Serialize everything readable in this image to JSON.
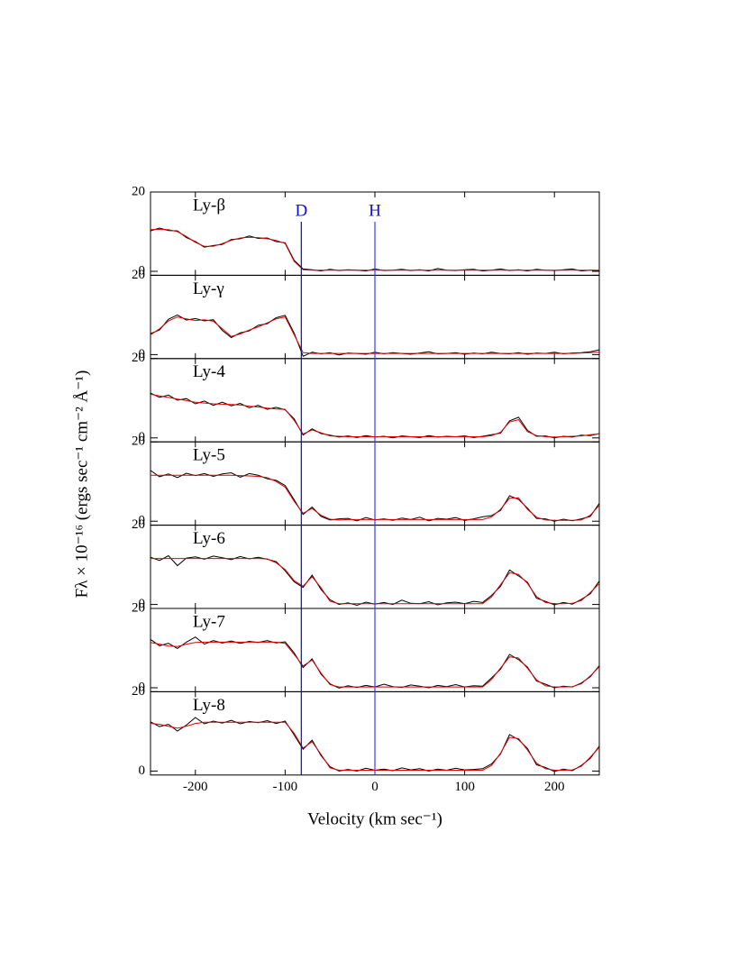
{
  "chart_data": {
    "type": "line",
    "xlabel": "Velocity (km sec⁻¹)",
    "ylabel": "Fλ × 10⁻¹⁶ (ergs sec⁻¹ cm⁻² Å⁻¹)",
    "xlim": [
      -250,
      250
    ],
    "xticks": [
      -200,
      -100,
      0,
      100,
      200
    ],
    "x": [
      -250,
      -240,
      -230,
      -220,
      -210,
      -200,
      -190,
      -180,
      -170,
      -160,
      -150,
      -140,
      -130,
      -120,
      -110,
      -100,
      -90,
      -80,
      -70,
      -60,
      -50,
      -40,
      -30,
      -20,
      -10,
      0,
      10,
      20,
      30,
      40,
      50,
      60,
      70,
      80,
      90,
      100,
      110,
      120,
      130,
      140,
      150,
      160,
      170,
      180,
      190,
      200,
      210,
      220,
      230,
      240,
      250
    ],
    "vlines": [
      {
        "label": "D",
        "x": -82,
        "color": "#1a1a5e"
      },
      {
        "label": "H",
        "x": 0,
        "color": "#3a3aff"
      }
    ],
    "panels": [
      {
        "label": "Ly-β",
        "ylim": [
          -1,
          20
        ],
        "yticks": [
          0,
          20
        ],
        "series": [
          {
            "color": "#000000",
            "values": [
              10.2,
              10.9,
              10.3,
              10.2,
              8.5,
              7.5,
              6.1,
              6.5,
              6.8,
              8,
              8.2,
              8.9,
              8.3,
              8.4,
              7.5,
              7.2,
              2.8,
              0.6,
              0.4,
              0.1,
              0.5,
              0.2,
              0.4,
              0.3,
              0.1,
              0.6,
              0.2,
              0.3,
              0.5,
              0.2,
              0.4,
              0.1,
              0.7,
              0.3,
              0.2,
              0.4,
              0.5,
              0.1,
              0.3,
              0.6,
              0.2,
              0.4,
              0.1,
              0.5,
              0.3,
              0.2,
              0.4,
              0.6,
              0.1,
              0.3,
              0.2
            ]
          },
          {
            "color": "#e00000",
            "values": [
              10.5,
              10.6,
              10.5,
              10,
              8.8,
              7.3,
              6.3,
              6.3,
              7,
              7.8,
              8.4,
              8.6,
              8.5,
              8.2,
              7.8,
              7,
              2.5,
              0.4,
              0.3,
              0.3,
              0.3,
              0.3,
              0.3,
              0.3,
              0.3,
              0.3,
              0.3,
              0.3,
              0.3,
              0.3,
              0.3,
              0.3,
              0.3,
              0.3,
              0.3,
              0.3,
              0.3,
              0.3,
              0.3,
              0.3,
              0.3,
              0.3,
              0.3,
              0.3,
              0.3,
              0.3,
              0.3,
              0.3,
              0.3,
              0.3,
              0.3
            ]
          }
        ]
      },
      {
        "label": "Ly-γ",
        "ylim": [
          -1,
          20
        ],
        "yticks": [
          0,
          20
        ],
        "series": [
          {
            "color": "#000000",
            "values": [
              5.3,
              6.2,
              8.9,
              10,
              8.7,
              9.1,
              8.5,
              8.8,
              6.1,
              4.3,
              5.5,
              6,
              7.4,
              7.8,
              9.3,
              9.9,
              5.4,
              -0.4,
              0.6,
              0.2,
              0.5,
              -0.1,
              0.4,
              0.3,
              0.1,
              0.6,
              0.2,
              0.5,
              0.3,
              0.1,
              0.4,
              0.7,
              0.2,
              0.3,
              0.5,
              0.1,
              0.4,
              0.2,
              0.6,
              0.3,
              0.2,
              0.5,
              0.1,
              0.4,
              0.3,
              0.6,
              0.2,
              0.4,
              0.5,
              0.7,
              1.2
            ]
          },
          {
            "color": "#e00000",
            "values": [
              5,
              6.5,
              8.5,
              9.5,
              9,
              8.6,
              8.8,
              8.4,
              6.5,
              4.6,
              5.2,
              6.2,
              7,
              8,
              9,
              9.5,
              5,
              0.5,
              0.3,
              0.3,
              0.3,
              0.3,
              0.3,
              0.3,
              0.3,
              0.3,
              0.3,
              0.3,
              0.3,
              0.3,
              0.3,
              0.3,
              0.3,
              0.3,
              0.3,
              0.3,
              0.3,
              0.3,
              0.3,
              0.3,
              0.3,
              0.3,
              0.3,
              0.3,
              0.3,
              0.3,
              0.3,
              0.3,
              0.4,
              0.5,
              0.6
            ]
          }
        ]
      },
      {
        "label": "Ly-4",
        "ylim": [
          -1,
          20
        ],
        "yticks": [
          0,
          20
        ],
        "series": [
          {
            "color": "#000000",
            "values": [
              11.3,
              10.2,
              10.8,
              9.5,
              9.9,
              8.6,
              9.3,
              8.2,
              9,
              8.1,
              8.7,
              7.6,
              8.2,
              7.2,
              7.7,
              7.1,
              4.8,
              0.7,
              2.3,
              1.1,
              0.7,
              0.2,
              0.5,
              0.1,
              0.6,
              0.2,
              0.4,
              0,
              0.5,
              0.3,
              0.1,
              0.6,
              0.2,
              0.4,
              0.3,
              0.5,
              0.1,
              0.4,
              0.8,
              1.2,
              4.3,
              5.2,
              1.9,
              0.4,
              0.5,
              0,
              0.4,
              0.2,
              0.7,
              0.6,
              1.1
            ]
          },
          {
            "color": "#e00000",
            "values": [
              11,
              10.6,
              10.2,
              9.8,
              9.4,
              9,
              8.8,
              8.6,
              8.5,
              8.4,
              8.3,
              8,
              7.8,
              7.5,
              7.3,
              7.2,
              4.4,
              1,
              2,
              1.3,
              0.5,
              0.4,
              0.3,
              0.3,
              0.3,
              0.3,
              0.3,
              0.3,
              0.3,
              0.3,
              0.3,
              0.3,
              0.3,
              0.3,
              0.3,
              0.3,
              0.3,
              0.3,
              0.6,
              1.4,
              4,
              4.6,
              1.6,
              0.6,
              0.3,
              0.2,
              0.3,
              0.4,
              0.5,
              0.8,
              1
            ]
          }
        ]
      },
      {
        "label": "Ly-5",
        "ylim": [
          -1,
          20
        ],
        "yticks": [
          0,
          20
        ],
        "series": [
          {
            "color": "#000000",
            "values": [
              12.8,
              11.2,
              11.9,
              11,
              12.1,
              11.5,
              12,
              11.3,
              11.9,
              12.2,
              11.1,
              12,
              11.6,
              10.7,
              10.3,
              9,
              5.4,
              1.7,
              3.6,
              1.2,
              0.3,
              0.6,
              0.7,
              0.1,
              0.9,
              0.3,
              0.6,
              0.2,
              0.8,
              0.4,
              1,
              0.1,
              0.7,
              0.5,
              0.9,
              0.2,
              0.6,
              1.1,
              1.4,
              2.7,
              6.4,
              5.5,
              3.3,
              0.7,
              0.6,
              0,
              0.5,
              0.1,
              0.6,
              1.2,
              4.5
            ]
          },
          {
            "color": "#e00000",
            "values": [
              11.6,
              11.6,
              11.6,
              11.6,
              11.6,
              11.6,
              11.6,
              11.6,
              11.6,
              11.6,
              11.5,
              11.4,
              11.3,
              11,
              10,
              8.6,
              5,
              2,
              3.2,
              1.5,
              0.5,
              0.3,
              0.4,
              0.4,
              0.4,
              0.4,
              0.4,
              0.4,
              0.4,
              0.4,
              0.4,
              0.4,
              0.4,
              0.4,
              0.4,
              0.4,
              0.4,
              0.4,
              1.1,
              3,
              5.8,
              5.9,
              3,
              1,
              0.3,
              0.2,
              0.2,
              0.2,
              0.3,
              1.5,
              4
            ]
          }
        ]
      },
      {
        "label": "Ly-6",
        "ylim": [
          -1,
          20
        ],
        "yticks": [
          0,
          20
        ],
        "series": [
          {
            "color": "#000000",
            "values": [
              11.9,
              11.1,
              12.3,
              9.8,
              11.7,
              12,
              11.4,
              12.2,
              11.8,
              11.3,
              12.1,
              11.5,
              11.9,
              11.4,
              10.8,
              8.5,
              5.7,
              4.3,
              7.4,
              3.8,
              1.2,
              0,
              0.4,
              -0.2,
              0.6,
              0.1,
              0.5,
              0,
              1.1,
              0.3,
              0.2,
              0.7,
              -0.1,
              0.4,
              0.6,
              0.2,
              0.8,
              0.5,
              2.3,
              4.6,
              8.7,
              7.2,
              5.6,
              1.6,
              0.8,
              -0.1,
              0.5,
              0.1,
              1.3,
              2.7,
              5.9
            ]
          },
          {
            "color": "#e00000",
            "values": [
              11.6,
              11.6,
              11.6,
              11.6,
              11.6,
              11.6,
              11.6,
              11.6,
              11.6,
              11.6,
              11.6,
              11.6,
              11.6,
              11.5,
              10.5,
              8.8,
              6,
              4.6,
              7,
              4.2,
              0.8,
              0.2,
              0.2,
              0.2,
              0.2,
              0.2,
              0.2,
              0.2,
              0.2,
              0.2,
              0.2,
              0.2,
              0.2,
              0.2,
              0.2,
              0.2,
              0.2,
              0.2,
              1.9,
              5,
              8,
              7.6,
              5.3,
              2,
              0.5,
              0.2,
              0.2,
              0.3,
              1,
              3,
              5.3
            ]
          }
        ]
      },
      {
        "label": "Ly-7",
        "ylim": [
          -1,
          20
        ],
        "yticks": [
          0,
          20
        ],
        "series": [
          {
            "color": "#000000",
            "values": [
              12.2,
              10.6,
              11.2,
              9.9,
              11.5,
              12.8,
              11,
              11.9,
              11.3,
              11.8,
              11.2,
              11.7,
              11.4,
              11.9,
              11.3,
              11.6,
              8.8,
              5.1,
              7.3,
              3.4,
              1,
              -0.1,
              0.5,
              0.1,
              0.6,
              0.2,
              0.9,
              0.3,
              0.1,
              0.7,
              0.4,
              0,
              0.6,
              0.3,
              0.8,
              0.2,
              0.5,
              0.4,
              2.5,
              4.7,
              8.4,
              7.1,
              5.2,
              1.7,
              0.9,
              0,
              0.4,
              0.2,
              1.2,
              2.8,
              5.6
            ]
          },
          {
            "color": "#e00000",
            "values": [
              11.4,
              11,
              10.5,
              10.4,
              11,
              11.4,
              11.5,
              11.5,
              11.5,
              11.5,
              11.5,
              11.5,
              11.5,
              11.5,
              11.5,
              11.2,
              8.4,
              5.5,
              7,
              3.7,
              0.8,
              0.2,
              0.2,
              0.2,
              0.2,
              0.2,
              0.2,
              0.2,
              0.2,
              0.2,
              0.2,
              0.2,
              0.2,
              0.2,
              0.2,
              0.2,
              0.2,
              0.2,
              2.1,
              5,
              7.8,
              7.5,
              4.9,
              2,
              0.5,
              0.2,
              0.2,
              0.3,
              1,
              3,
              5.3
            ]
          }
        ]
      },
      {
        "label": "Ly-8",
        "ylim": [
          -1,
          20
        ],
        "yticks": [
          0,
          20
        ],
        "series": [
          {
            "color": "#000000",
            "values": [
              12.4,
              11.2,
              11.8,
              10.1,
              11.6,
              13.5,
              11.9,
              12.6,
              12.1,
              12.8,
              11.9,
              12.5,
              12.2,
              12.7,
              12,
              12.6,
              9.1,
              5.5,
              7.8,
              3.9,
              1.1,
              0,
              0.4,
              0,
              0.7,
              0.2,
              0.5,
              0.1,
              0.8,
              0.3,
              0.6,
              0,
              0.5,
              0.2,
              0.7,
              0.3,
              0.4,
              0.6,
              1.8,
              4.3,
              9.2,
              7.9,
              5.7,
              1.6,
              0.9,
              -0.1,
              0.5,
              0.1,
              1.4,
              3.2,
              6.3
            ]
          },
          {
            "color": "#e00000",
            "values": [
              12,
              11.8,
              11.3,
              10.8,
              11.3,
              12,
              12.3,
              12.3,
              12.3,
              12.3,
              12.3,
              12.3,
              12.3,
              12.3,
              12.3,
              12.3,
              9.5,
              5.8,
              7.4,
              4.2,
              0.8,
              0.2,
              0.2,
              0.2,
              0.2,
              0.2,
              0.2,
              0.2,
              0.2,
              0.2,
              0.2,
              0.2,
              0.2,
              0.2,
              0.2,
              0.2,
              0.2,
              0.2,
              1.4,
              4.5,
              8.5,
              8.2,
              5.3,
              2,
              0.6,
              0.2,
              0.2,
              0.3,
              1.2,
              3.5,
              6
            ]
          }
        ]
      }
    ]
  }
}
